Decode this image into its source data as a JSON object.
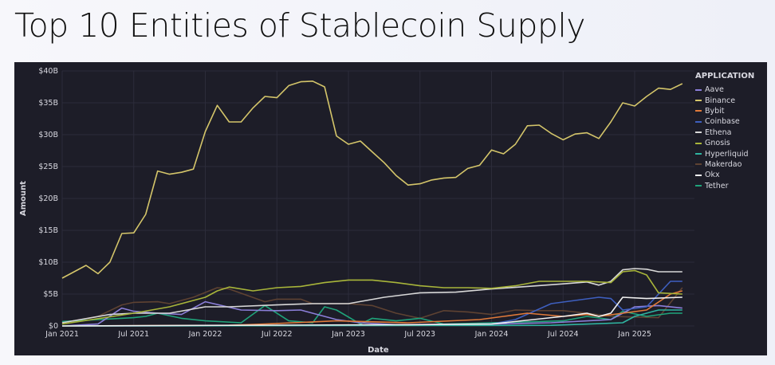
{
  "title": "Top 10 Entities of Stablecoin Supply",
  "chart_data": {
    "type": "line",
    "title": "Top 10 Entities of Stablecoin Supply",
    "xlabel": "Date",
    "ylabel": "Amount",
    "ylim": [
      0,
      40
    ],
    "yticks": [
      "$0",
      "$5B",
      "$10B",
      "$15B",
      "$20B",
      "$25B",
      "$30B",
      "$35B",
      "$40B"
    ],
    "xticks": [
      [
        "2021-01",
        "Jan 2021"
      ],
      [
        "2021-07",
        "Jul 2021"
      ],
      [
        "2022-01",
        "Jan 2022"
      ],
      [
        "2022-07",
        "Jul 2022"
      ],
      [
        "2023-01",
        "Jan 2023"
      ],
      [
        "2023-07",
        "Jul 2023"
      ],
      [
        "2024-01",
        "Jan 2024"
      ],
      [
        "2024-07",
        "Jul 2024"
      ],
      [
        "2025-01",
        "Jan 2025"
      ]
    ],
    "legend_title": "APPLICATION",
    "legend_position": "right",
    "units": "billions USD",
    "series": [
      {
        "name": "Makerdao",
        "color": "#5e4232",
        "points": [
          [
            "2021-01",
            0.5
          ],
          [
            "2021-04",
            1.5
          ],
          [
            "2021-06",
            3.3
          ],
          [
            "2021-07",
            3.7
          ],
          [
            "2021-09",
            3.8
          ],
          [
            "2021-10",
            3.5
          ],
          [
            "2021-12",
            4.5
          ],
          [
            "2022-02",
            6
          ],
          [
            "2022-03",
            5.8
          ],
          [
            "2022-06",
            3.8
          ],
          [
            "2022-07",
            4.2
          ],
          [
            "2022-09",
            4.2
          ],
          [
            "2022-10",
            3.5
          ],
          [
            "2023-01",
            3.5
          ],
          [
            "2023-03",
            3.2
          ],
          [
            "2023-05",
            2
          ],
          [
            "2023-07",
            1.2
          ],
          [
            "2023-09",
            2.4
          ],
          [
            "2023-11",
            2.2
          ],
          [
            "2024-01",
            1.8
          ],
          [
            "2024-03",
            2.5
          ],
          [
            "2024-05",
            2.4
          ],
          [
            "2024-07",
            2.4
          ],
          [
            "2024-09",
            2
          ],
          [
            "2024-11",
            1.5
          ],
          [
            "2025-01",
            1.4
          ],
          [
            "2025-03",
            1.3
          ],
          [
            "2025-05",
            6
          ]
        ]
      },
      {
        "name": "Tether",
        "color": "#1fa37a",
        "points": [
          [
            "2021-01",
            0.7
          ],
          [
            "2021-04",
            1
          ],
          [
            "2021-07",
            1.3
          ],
          [
            "2021-08",
            1.5
          ],
          [
            "2021-09",
            2
          ],
          [
            "2021-11",
            1.2
          ],
          [
            "2022-01",
            0.8
          ],
          [
            "2022-04",
            0.5
          ],
          [
            "2022-06",
            3.2
          ],
          [
            "2022-08",
            0.8
          ],
          [
            "2022-10",
            0.5
          ],
          [
            "2022-11",
            3
          ],
          [
            "2022-12",
            2.5
          ],
          [
            "2023-02",
            0.3
          ],
          [
            "2023-03",
            1.2
          ],
          [
            "2023-05",
            0.8
          ],
          [
            "2023-07",
            1.2
          ],
          [
            "2023-09",
            0.3
          ],
          [
            "2024-01",
            0.5
          ],
          [
            "2024-07",
            0.8
          ],
          [
            "2024-09",
            1.5
          ],
          [
            "2024-11",
            1
          ],
          [
            "2024-12",
            2.3
          ],
          [
            "2025-02",
            1.5
          ],
          [
            "2025-04",
            2
          ],
          [
            "2025-05",
            2
          ]
        ]
      },
      {
        "name": "Aave",
        "color": "#8b7fd9",
        "points": [
          [
            "2021-01",
            0
          ],
          [
            "2021-04",
            0.3
          ],
          [
            "2021-06",
            2.8
          ],
          [
            "2021-07",
            2.3
          ],
          [
            "2021-09",
            2
          ],
          [
            "2021-11",
            1.8
          ],
          [
            "2022-01",
            3.8
          ],
          [
            "2022-04",
            2.5
          ],
          [
            "2022-07",
            2.4
          ],
          [
            "2022-09",
            2.5
          ],
          [
            "2022-12",
            1
          ],
          [
            "2023-02",
            0.5
          ],
          [
            "2023-05",
            0.2
          ],
          [
            "2024-01",
            0.3
          ],
          [
            "2024-06",
            0.5
          ],
          [
            "2024-11",
            1
          ],
          [
            "2025-01",
            3
          ],
          [
            "2025-03",
            3.2
          ],
          [
            "2025-05",
            2.8
          ]
        ]
      },
      {
        "name": "Coinbase",
        "color": "#3e5fbf",
        "points": [
          [
            "2021-01",
            0
          ],
          [
            "2023-06",
            0.1
          ],
          [
            "2024-01",
            0.3
          ],
          [
            "2024-03",
            1
          ],
          [
            "2024-06",
            3.5
          ],
          [
            "2024-08",
            4
          ],
          [
            "2024-10",
            4.5
          ],
          [
            "2024-11",
            4.3
          ],
          [
            "2024-12",
            2.5
          ],
          [
            "2025-02",
            3
          ],
          [
            "2025-04",
            7
          ],
          [
            "2025-05",
            7
          ]
        ]
      },
      {
        "name": "Bybit",
        "color": "#e07a3a",
        "points": [
          [
            "2021-01",
            0
          ],
          [
            "2022-03",
            0.1
          ],
          [
            "2022-06",
            0.3
          ],
          [
            "2022-12",
            0.8
          ],
          [
            "2023-06",
            0.5
          ],
          [
            "2023-12",
            1
          ],
          [
            "2024-02",
            1.5
          ],
          [
            "2024-04",
            2
          ],
          [
            "2024-07",
            1.5
          ],
          [
            "2024-09",
            1.8
          ],
          [
            "2024-10",
            1.5
          ],
          [
            "2024-12",
            2
          ],
          [
            "2025-02",
            2.5
          ],
          [
            "2025-04",
            5
          ],
          [
            "2025-05",
            5.5
          ]
        ]
      },
      {
        "name": "Hyperliquid",
        "color": "#2fb3a0",
        "points": [
          [
            "2021-01",
            0
          ],
          [
            "2024-06",
            0.1
          ],
          [
            "2024-12",
            0.5
          ],
          [
            "2025-01",
            1.5
          ],
          [
            "2025-03",
            2.5
          ],
          [
            "2025-05",
            2.5
          ]
        ]
      },
      {
        "name": "Okx",
        "color": "#f0f0f0",
        "points": [
          [
            "2021-01",
            0
          ],
          [
            "2023-06",
            0.2
          ],
          [
            "2024-01",
            0.3
          ],
          [
            "2024-07",
            1.5
          ],
          [
            "2024-09",
            2
          ],
          [
            "2024-10",
            1.5
          ],
          [
            "2024-11",
            2
          ],
          [
            "2024-12",
            4.5
          ],
          [
            "2025-02",
            4.3
          ],
          [
            "2025-05",
            4.5
          ]
        ]
      },
      {
        "name": "Ethena",
        "color": "#d8d8d8",
        "points": [
          [
            "2021-01",
            0.5
          ],
          [
            "2021-05",
            1.8
          ],
          [
            "2021-07",
            2
          ],
          [
            "2021-10",
            2
          ],
          [
            "2022-01",
            3
          ],
          [
            "2022-03",
            3
          ],
          [
            "2022-07",
            3.3
          ],
          [
            "2022-10",
            3.5
          ],
          [
            "2023-01",
            3.5
          ],
          [
            "2023-04",
            4.5
          ],
          [
            "2023-07",
            5.2
          ],
          [
            "2023-10",
            5.3
          ],
          [
            "2024-01",
            5.8
          ],
          [
            "2024-04",
            6.2
          ],
          [
            "2024-07",
            6.6
          ],
          [
            "2024-09",
            6.9
          ],
          [
            "2024-10",
            6.4
          ],
          [
            "2024-11",
            7
          ],
          [
            "2024-12",
            8.8
          ],
          [
            "2025-01",
            9
          ],
          [
            "2025-02",
            8.9
          ],
          [
            "2025-03",
            8.5
          ],
          [
            "2025-05",
            8.5
          ]
        ]
      },
      {
        "name": "Gnosis",
        "color": "#a8b53a",
        "points": [
          [
            "2021-01",
            0.3
          ],
          [
            "2021-07",
            2
          ],
          [
            "2021-10",
            3
          ],
          [
            "2022-01",
            4.5
          ],
          [
            "2022-02",
            5.5
          ],
          [
            "2022-03",
            6.1
          ],
          [
            "2022-05",
            5.5
          ],
          [
            "2022-07",
            6
          ],
          [
            "2022-09",
            6.2
          ],
          [
            "2022-11",
            6.8
          ],
          [
            "2023-01",
            7.2
          ],
          [
            "2023-03",
            7.2
          ],
          [
            "2023-05",
            6.8
          ],
          [
            "2023-07",
            6.3
          ],
          [
            "2023-09",
            6
          ],
          [
            "2023-11",
            6
          ],
          [
            "2024-01",
            5.9
          ],
          [
            "2024-03",
            6.3
          ],
          [
            "2024-05",
            7
          ],
          [
            "2024-07",
            7
          ],
          [
            "2024-09",
            7
          ],
          [
            "2024-11",
            6.8
          ],
          [
            "2024-12",
            8.5
          ],
          [
            "2025-01",
            8.7
          ],
          [
            "2025-02",
            8
          ],
          [
            "2025-03",
            5.2
          ],
          [
            "2025-05",
            5
          ]
        ]
      },
      {
        "name": "Binance",
        "color": "#d4c56a",
        "points": [
          [
            "2021-01",
            7.5
          ],
          [
            "2021-02",
            8.5
          ],
          [
            "2021-03",
            9.5
          ],
          [
            "2021-04",
            8.2
          ],
          [
            "2021-05",
            10
          ],
          [
            "2021-06",
            14.5
          ],
          [
            "2021-07",
            14.6
          ],
          [
            "2021-08",
            17.5
          ],
          [
            "2021-09",
            24.3
          ],
          [
            "2021-10",
            23.8
          ],
          [
            "2021-11",
            24.1
          ],
          [
            "2021-12",
            24.6
          ],
          [
            "2022-01",
            30.5
          ],
          [
            "2022-02",
            34.6
          ],
          [
            "2022-03",
            32
          ],
          [
            "2022-04",
            32
          ],
          [
            "2022-05",
            34.2
          ],
          [
            "2022-06",
            36
          ],
          [
            "2022-07",
            35.8
          ],
          [
            "2022-08",
            37.7
          ],
          [
            "2022-09",
            38.3
          ],
          [
            "2022-10",
            38.4
          ],
          [
            "2022-11",
            37.5
          ],
          [
            "2022-12",
            29.8
          ],
          [
            "2023-01",
            28.5
          ],
          [
            "2023-02",
            29
          ],
          [
            "2023-03",
            27.3
          ],
          [
            "2023-04",
            25.6
          ],
          [
            "2023-05",
            23.6
          ],
          [
            "2023-06",
            22.1
          ],
          [
            "2023-07",
            22.3
          ],
          [
            "2023-08",
            22.9
          ],
          [
            "2023-09",
            23.2
          ],
          [
            "2023-10",
            23.3
          ],
          [
            "2023-11",
            24.7
          ],
          [
            "2023-12",
            25.2
          ],
          [
            "2024-01",
            27.6
          ],
          [
            "2024-02",
            27
          ],
          [
            "2024-03",
            28.5
          ],
          [
            "2024-04",
            31.4
          ],
          [
            "2024-05",
            31.5
          ],
          [
            "2024-06",
            30.2
          ],
          [
            "2024-07",
            29.2
          ],
          [
            "2024-08",
            30.1
          ],
          [
            "2024-09",
            30.3
          ],
          [
            "2024-10",
            29.4
          ],
          [
            "2024-11",
            32
          ],
          [
            "2024-12",
            35
          ],
          [
            "2025-01",
            34.5
          ],
          [
            "2025-02",
            36
          ],
          [
            "2025-03",
            37.3
          ],
          [
            "2025-04",
            37.1
          ],
          [
            "2025-05",
            38
          ]
        ]
      }
    ],
    "legend_order": [
      "Aave",
      "Binance",
      "Bybit",
      "Coinbase",
      "Ethena",
      "Gnosis",
      "Hyperliquid",
      "Makerdao",
      "Okx",
      "Tether"
    ]
  }
}
